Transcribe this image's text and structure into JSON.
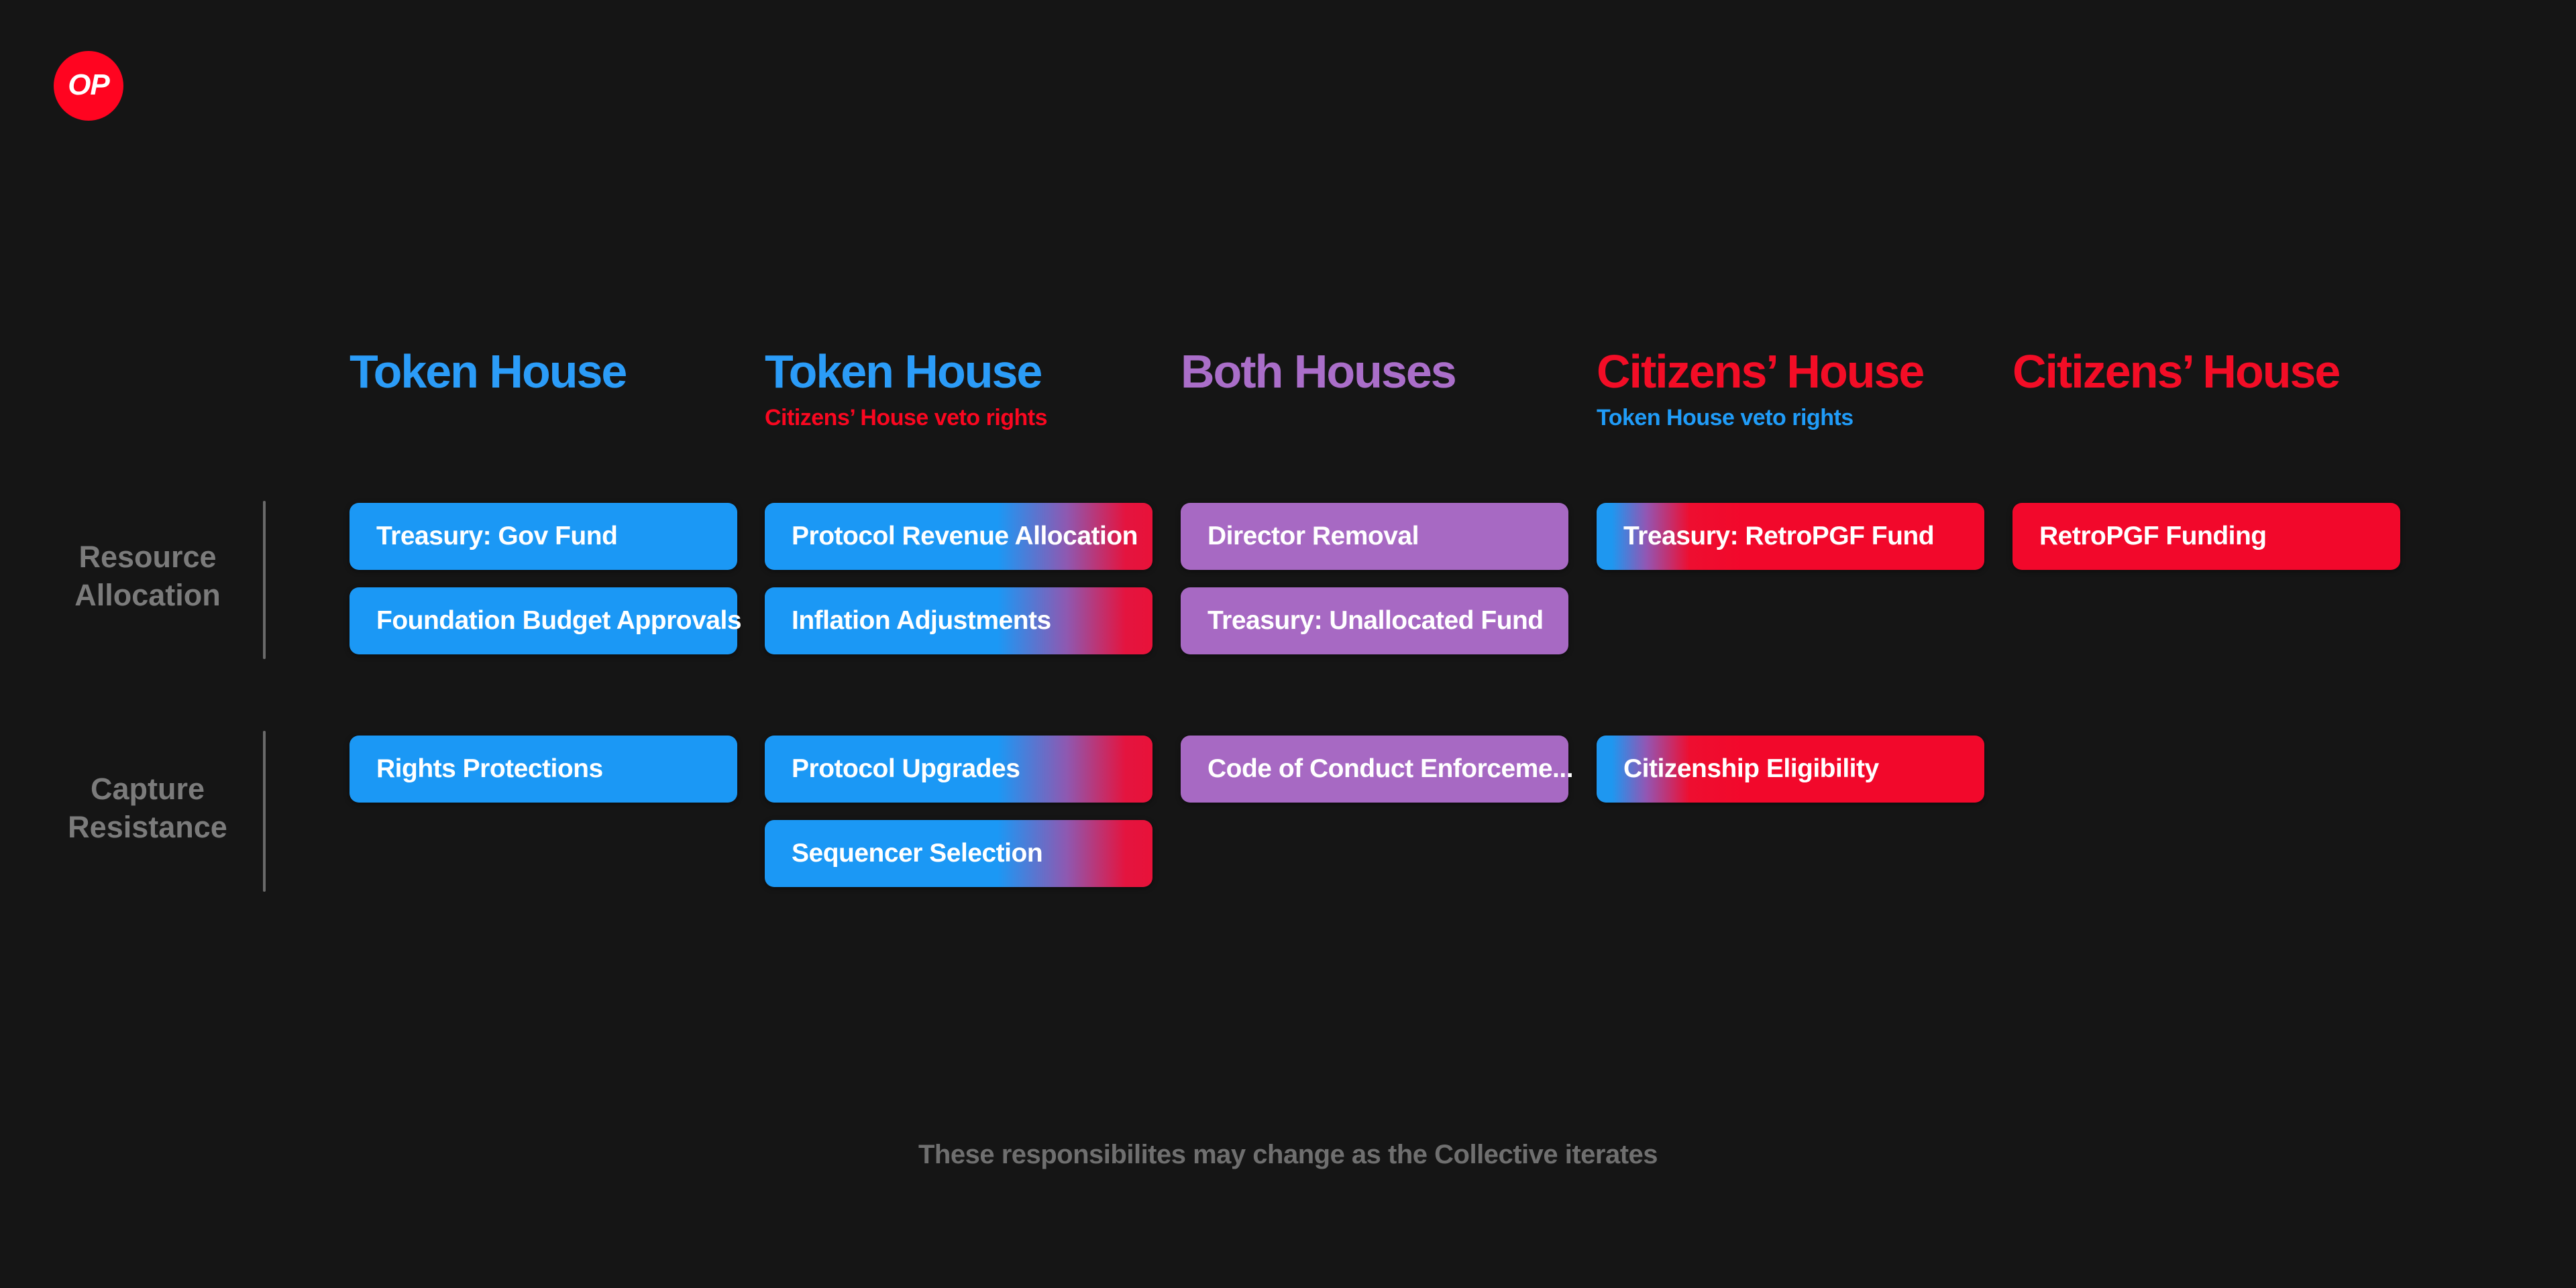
{
  "app": {
    "background": "#151515",
    "footnote": "These responsibilites may change as the Collective iterates"
  },
  "logo": {
    "label": "OP",
    "color": "#FF0420"
  },
  "rows": [
    {
      "id": "resource-allocation",
      "lines": [
        "Resource",
        "Allocation"
      ]
    },
    {
      "id": "capture-resistance",
      "lines": [
        "Capture",
        "Resistance"
      ]
    }
  ],
  "columns": [
    {
      "id": "token-house-1",
      "title": "Token House",
      "title_color": "#2B9CF8",
      "subtitle": "",
      "pill_style": "blue",
      "pills": [
        {
          "label": "Treasury: Gov Fund",
          "section": "resource-allocation"
        },
        {
          "label": "Foundation Budget Approvals",
          "section": "resource-allocation"
        },
        {
          "label": "Rights Protections",
          "section": "capture-resistance"
        }
      ]
    },
    {
      "id": "token-house-2",
      "title": "Token House",
      "title_color": "#2B9CF8",
      "subtitle": "Citizens’ House veto rights",
      "subtitle_color": "#FA0720",
      "pill_style": "blue-to-red-gradient",
      "pills": [
        {
          "label": "Protocol Revenue Allocation",
          "section": "resource-allocation"
        },
        {
          "label": "Inflation Adjustments",
          "section": "resource-allocation"
        },
        {
          "label": "Protocol Upgrades",
          "section": "capture-resistance"
        },
        {
          "label": "Sequencer Selection",
          "section": "capture-resistance"
        }
      ]
    },
    {
      "id": "both-houses",
      "title": "Both Houses",
      "title_color": "#AA6EC9",
      "subtitle": "",
      "pill_style": "purple",
      "pills": [
        {
          "label": "Director Removal",
          "section": "resource-allocation"
        },
        {
          "label": "Treasury: Unallocated Fund",
          "section": "resource-allocation"
        },
        {
          "label": "Code of Conduct Enforceme...",
          "section": "capture-resistance"
        }
      ]
    },
    {
      "id": "citizens-house-1",
      "title": "Citizens’ House",
      "title_color": "#F30D26",
      "subtitle": "Token House veto rights",
      "subtitle_color": "#209CF8",
      "pill_style": "red-with-blue-left-edge",
      "pills": [
        {
          "label": "Treasury: RetroPGF Fund",
          "section": "resource-allocation"
        },
        {
          "label": "Citizenship Eligibility",
          "section": "capture-resistance"
        }
      ]
    },
    {
      "id": "citizens-house-2",
      "title": "Citizens’ House",
      "title_color": "#F30D26",
      "subtitle": "",
      "pill_style": "red",
      "pills": [
        {
          "label": "RetroPGF Funding",
          "section": "resource-allocation"
        }
      ]
    }
  ],
  "colors": {
    "background": "#151515",
    "blue": "#1B98F5",
    "purple": "#A769C3",
    "red": "#F2082B",
    "crimson": "#E81239",
    "header_blue": "#2B9CF8",
    "header_purple": "#AA6EC9",
    "header_red": "#F30D26",
    "label_gray": "#7B7B7B",
    "footnote_gray": "#6F6F6F",
    "logo_red": "#FF0420"
  }
}
